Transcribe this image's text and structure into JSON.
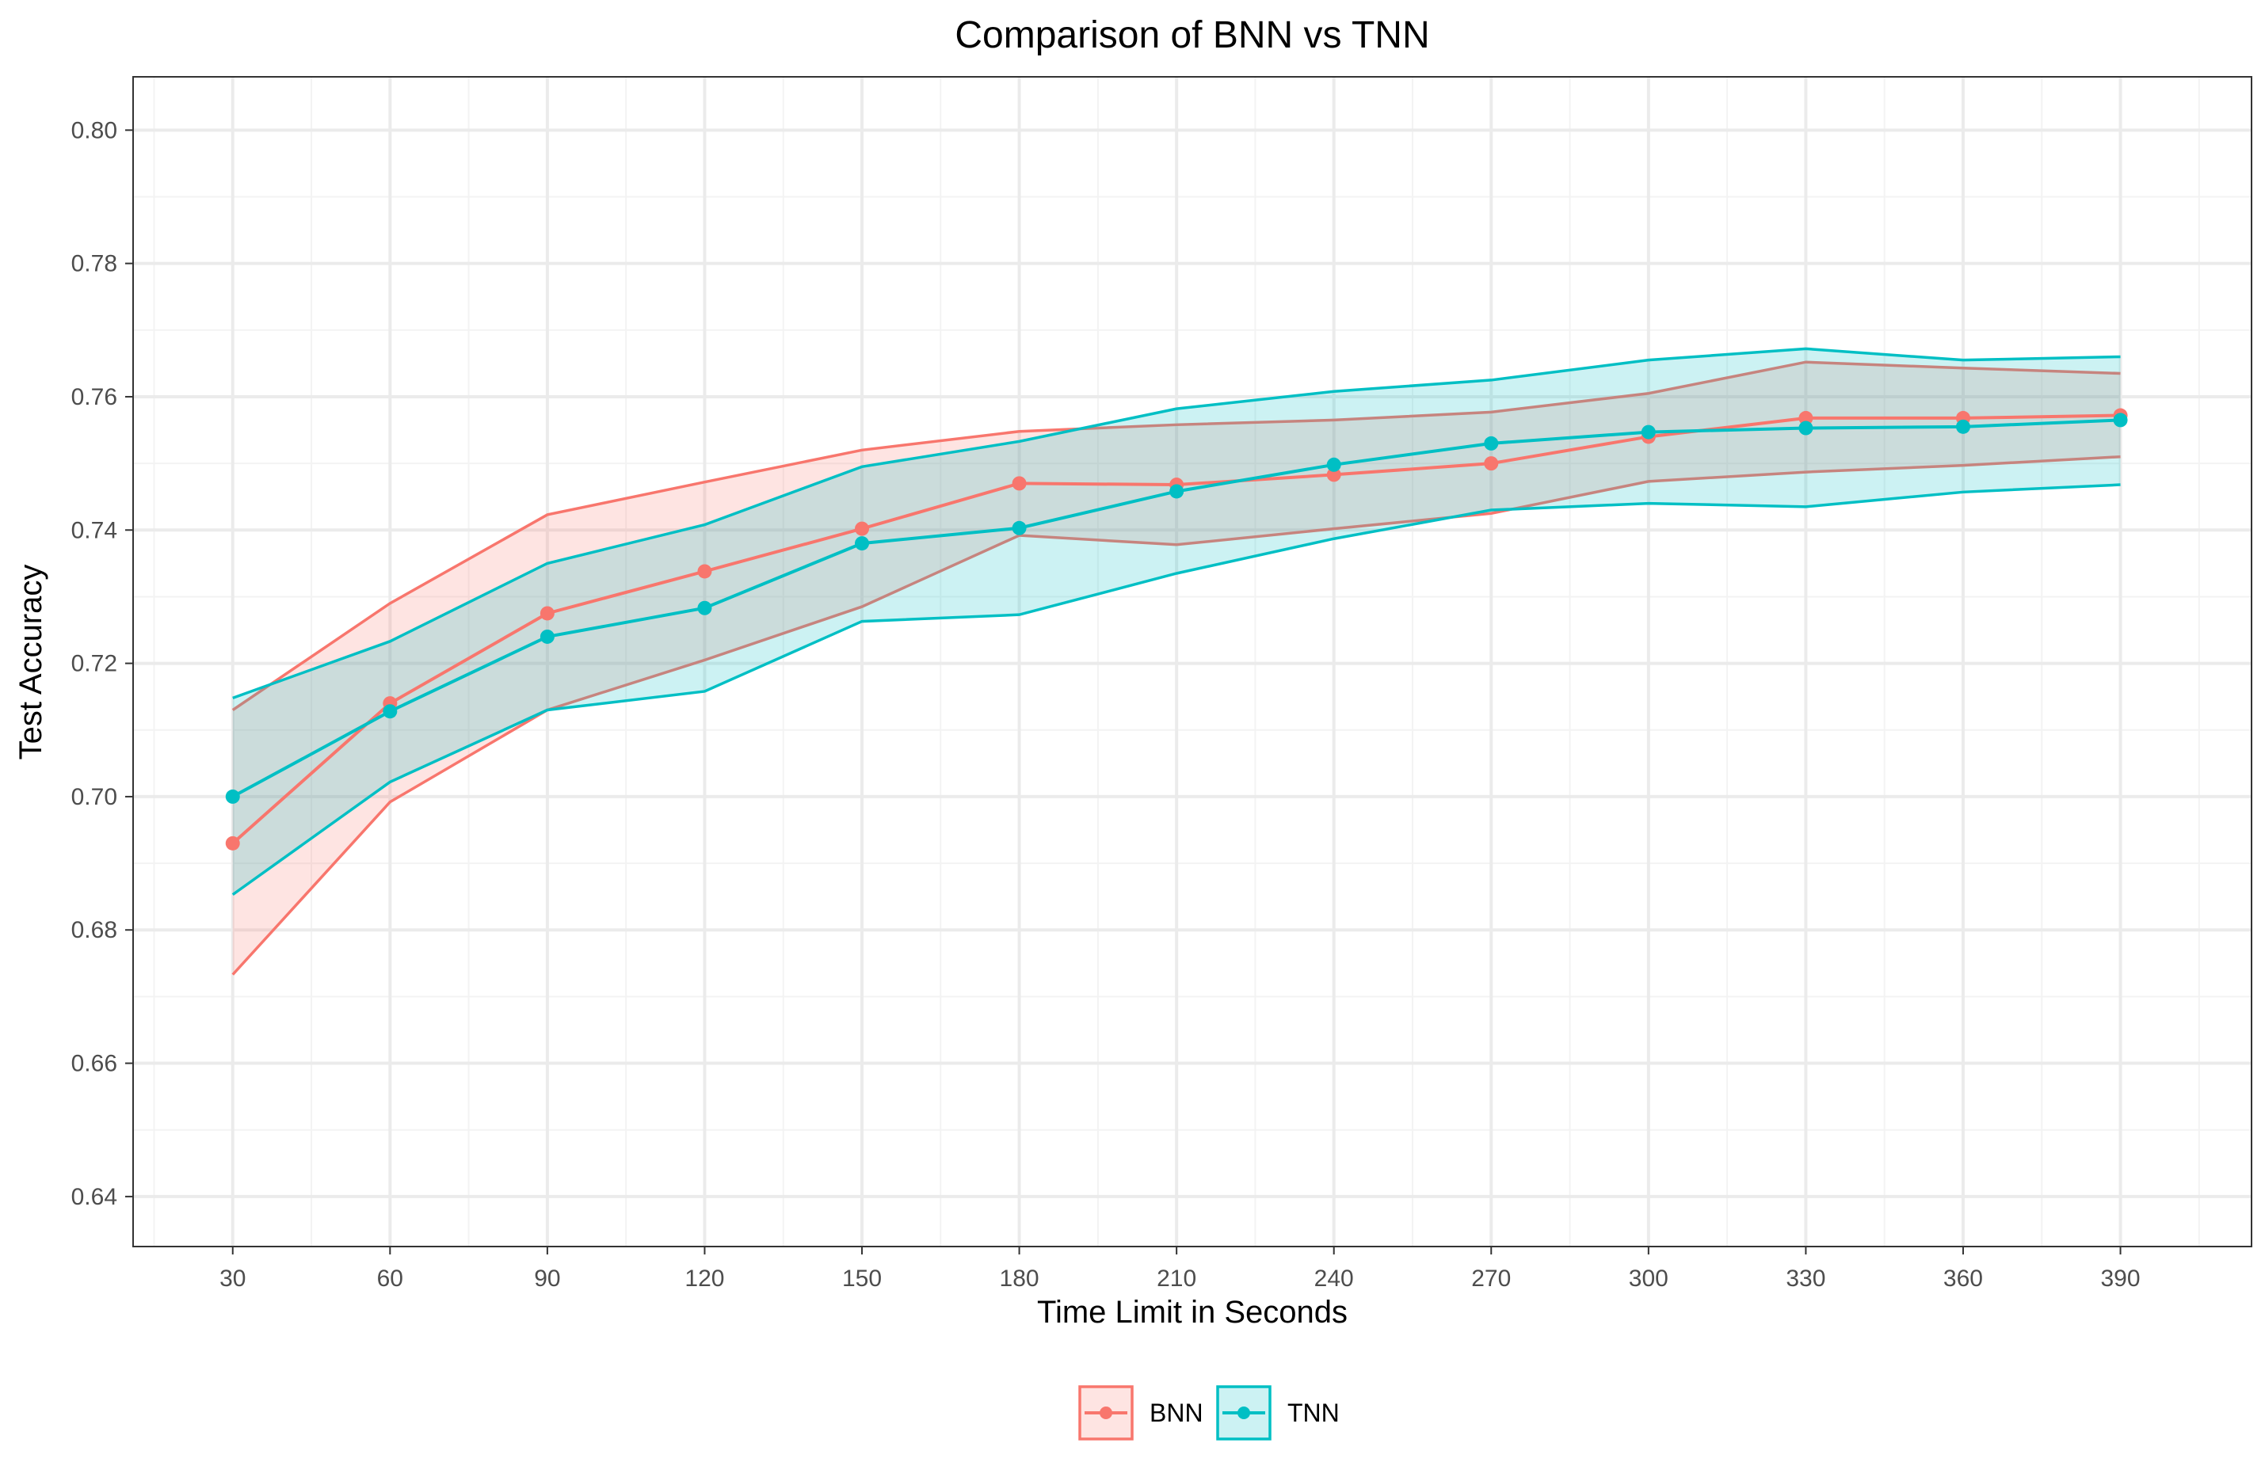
{
  "chart_data": {
    "type": "line",
    "title": "Comparison of BNN vs TNN",
    "xlabel": "Time Limit in Seconds",
    "ylabel": "Test Accuracy",
    "x": [
      30,
      60,
      90,
      120,
      150,
      180,
      210,
      240,
      270,
      300,
      330,
      360,
      390
    ],
    "xlim": [
      11,
      415
    ],
    "ylim": [
      0.6325,
      0.808
    ],
    "xticks": [
      "30",
      "60",
      "90",
      "120",
      "150",
      "180",
      "210",
      "240",
      "270",
      "300",
      "330",
      "360",
      "390"
    ],
    "yticks": [
      "0.64",
      "0.66",
      "0.68",
      "0.70",
      "0.72",
      "0.74",
      "0.76",
      "0.78",
      "0.80"
    ],
    "grid": true,
    "legend_position": "bottom",
    "series": [
      {
        "name": "BNN",
        "color": "#F8766D",
        "mean": [
          0.693,
          0.714,
          0.7275,
          0.7338,
          0.7402,
          0.747,
          0.7468,
          0.7483,
          0.75,
          0.754,
          0.7568,
          0.7568,
          0.7572
        ],
        "lower": [
          0.6733,
          0.6992,
          0.713,
          0.7205,
          0.7285,
          0.7392,
          0.7378,
          0.7402,
          0.7425,
          0.7473,
          0.7487,
          0.7497,
          0.751
        ],
        "upper": [
          0.713,
          0.729,
          0.7423,
          0.7472,
          0.752,
          0.7548,
          0.7558,
          0.7565,
          0.7577,
          0.7605,
          0.7652,
          0.7643,
          0.7635
        ]
      },
      {
        "name": "TNN",
        "color": "#00BFC4",
        "mean": [
          0.7,
          0.7128,
          0.724,
          0.7283,
          0.738,
          0.7403,
          0.7458,
          0.7498,
          0.753,
          0.7547,
          0.7553,
          0.7555,
          0.7565
        ],
        "lower": [
          0.6853,
          0.7022,
          0.713,
          0.7158,
          0.7263,
          0.7273,
          0.7335,
          0.7387,
          0.743,
          0.744,
          0.7435,
          0.7457,
          0.7468
        ],
        "upper": [
          0.7148,
          0.7233,
          0.735,
          0.7408,
          0.7495,
          0.7533,
          0.7582,
          0.7608,
          0.7625,
          0.7655,
          0.7672,
          0.7655,
          0.766
        ]
      }
    ]
  }
}
